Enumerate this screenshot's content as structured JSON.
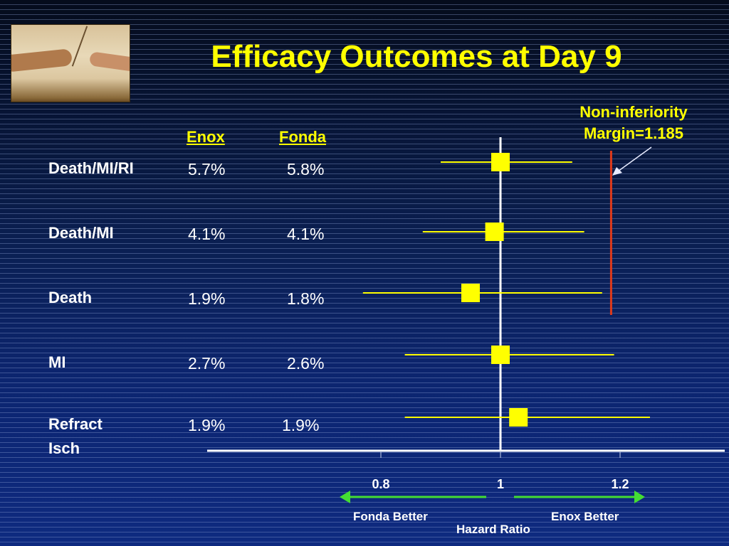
{
  "slide": {
    "title": "Efficacy Outcomes at Day 9",
    "logo_icon": "creation-of-adam-image",
    "column_headers": {
      "enox": "Enox",
      "fonda": "Fonda"
    },
    "rows": [
      {
        "label": "Death/MI/RI",
        "enox": "5.7%",
        "fonda": "5.8%"
      },
      {
        "label": "Death/MI",
        "enox": "4.1%",
        "fonda": "4.1%"
      },
      {
        "label": "Death",
        "enox": "1.9%",
        "fonda": "1.8%"
      },
      {
        "label": "MI",
        "enox": "2.7%",
        "fonda": "2.6%"
      },
      {
        "label": "Refract Isch",
        "label_line1": "Refract",
        "label_line2": "Isch",
        "enox": "1.9%",
        "fonda": "1.9%"
      }
    ],
    "noninferiority": {
      "line1": "Non-inferiority",
      "line2": "Margin=1.185"
    },
    "direction_labels": {
      "left": "Fonda Better",
      "right": "Enox Better"
    },
    "colors": {
      "title": "#ffff00",
      "marker": "#ffff00",
      "margin_line": "#e03a1a",
      "arrows": "#44dd33",
      "axis": "#ffffff"
    }
  },
  "chart_data": {
    "type": "forest",
    "title": "Efficacy Outcomes at Day 9",
    "xlabel": "Hazard Ratio",
    "ylabel": "",
    "xticks": [
      0.8,
      1,
      1.2
    ],
    "xtick_labels": [
      "0.8",
      "1",
      "1.2"
    ],
    "xlim": [
      0.6,
      1.38
    ],
    "reference_line": 1.0,
    "noninferiority_margin": 1.185,
    "categories": [
      "Death/MI/RI",
      "Death/MI",
      "Death",
      "MI",
      "Refract Isch"
    ],
    "series": [
      {
        "name": "Hazard Ratio (Fonda vs Enox)",
        "hr": [
          1.0,
          0.99,
          0.95,
          1.0,
          1.03
        ],
        "ci_low": [
          0.9,
          0.87,
          0.77,
          0.84,
          0.84
        ],
        "ci_high": [
          1.12,
          1.14,
          1.17,
          1.19,
          1.25
        ]
      }
    ],
    "grid": false,
    "legend": "none"
  }
}
